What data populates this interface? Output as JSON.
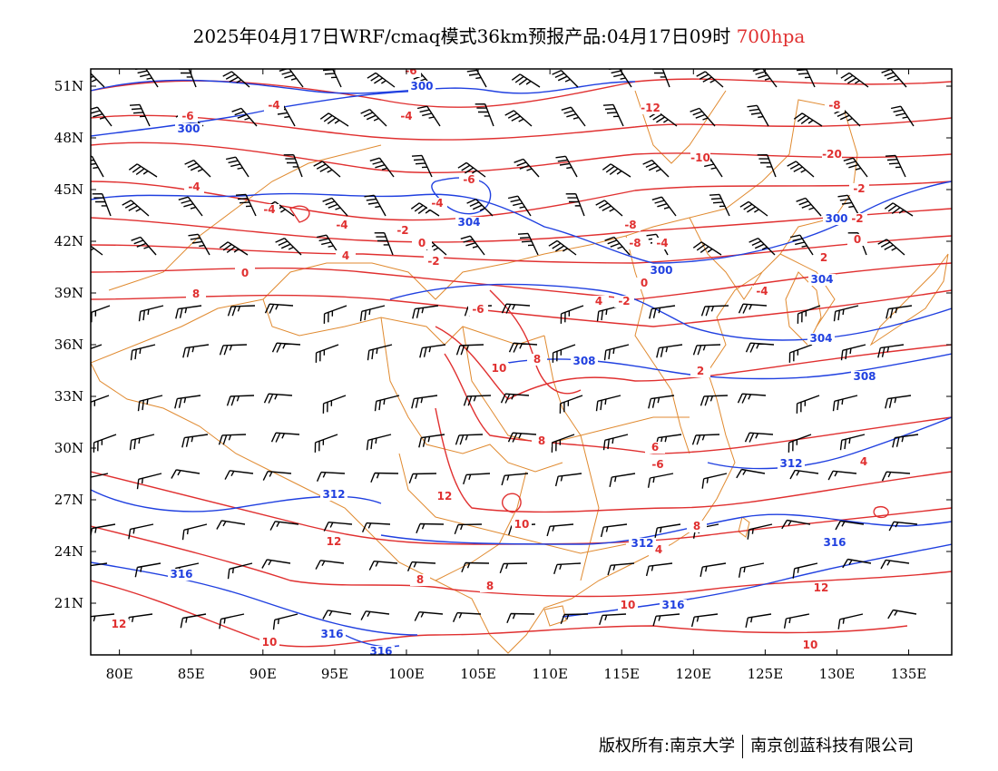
{
  "title": {
    "main": "2025年04月17日WRF/cmaq模式36km预报产品:04月17日09时",
    "level": "700hpa"
  },
  "colors": {
    "temperature": "#e03030",
    "height": "#2040e0",
    "border": "#e08a30",
    "wind": "#000000"
  },
  "axes": {
    "lat_ticks": [
      "51N",
      "48N",
      "45N",
      "42N",
      "39N",
      "36N",
      "33N",
      "30N",
      "27N",
      "24N",
      "21N"
    ],
    "lat_values": [
      51,
      48,
      45,
      42,
      39,
      36,
      33,
      30,
      27,
      24,
      21
    ],
    "lon_ticks": [
      "80E",
      "85E",
      "90E",
      "95E",
      "100E",
      "105E",
      "110E",
      "115E",
      "120E",
      "125E",
      "130E",
      "135E"
    ],
    "lon_values": [
      80,
      85,
      90,
      95,
      100,
      105,
      110,
      115,
      120,
      125,
      130,
      135
    ],
    "lon_range": [
      78,
      138
    ],
    "lat_range": [
      18,
      52
    ]
  },
  "temperature_labels": [
    "-6",
    "-6",
    "-4",
    "-4",
    "-12",
    "-8",
    "-10",
    "-20",
    "-6",
    "-4",
    "-4",
    "-2",
    "0",
    "-4",
    "-2",
    "-8",
    "-8",
    "-4",
    "0",
    "-4",
    "-2",
    "2",
    "0",
    "-2",
    "0",
    "-4",
    "4",
    "8",
    "-6",
    "-2",
    "4",
    "2",
    "8",
    "10",
    "6",
    "-6",
    "8",
    "4",
    "12",
    "10",
    "8",
    "4",
    "12",
    "8",
    "8",
    "10",
    "10",
    "12",
    "10",
    "12"
  ],
  "height_labels": [
    "300",
    "300",
    "304",
    "300",
    "304",
    "300",
    "308",
    "308",
    "312",
    "312",
    "316",
    "312",
    "316",
    "316",
    "316",
    "316",
    "304"
  ],
  "footer": {
    "left": "版权所有:南京大学",
    "right": "南京创蓝科技有限公司"
  }
}
